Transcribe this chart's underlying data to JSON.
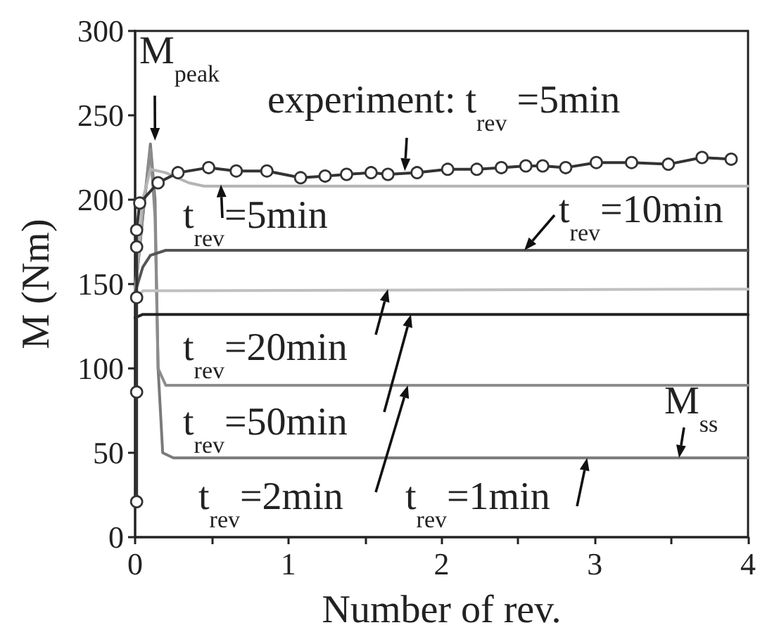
{
  "chart_data": {
    "type": "line",
    "xlabel": "Number of rev.",
    "ylabel": "M (Nm)",
    "xlim": [
      0,
      4
    ],
    "xticks": [
      0,
      {
        "value": 0.5,
        "label": null
      },
      1,
      {
        "value": 1.5,
        "label": null
      },
      2,
      {
        "value": 2.5,
        "label": null
      },
      3,
      {
        "value": 3.5,
        "label": null
      },
      4
    ],
    "ylim": [
      0,
      300
    ],
    "yticks": [
      0,
      50,
      100,
      150,
      200,
      250,
      300
    ],
    "grid": false,
    "line_style": "solid",
    "series": [
      {
        "color": "#7a7a7a",
        "marker": "none",
        "x": [
          0,
          0.05,
          0.1,
          0.13,
          0.15,
          0.18,
          0.25,
          4
        ],
        "values": [
          145,
          190,
          233,
          200,
          100,
          50,
          47,
          47
        ]
      },
      {
        "color": "#8c8c8c",
        "marker": "none",
        "x": [
          0,
          0.05,
          0.1,
          0.13,
          0.15,
          0.2,
          4
        ],
        "values": [
          145,
          190,
          230,
          190,
          100,
          90,
          90
        ]
      },
      {
        "color": "#b4b4b4",
        "marker": "none",
        "x": [
          0,
          0.05,
          0.1,
          0.2,
          0.35,
          0.45,
          4
        ],
        "values": [
          145,
          200,
          218,
          216,
          210,
          208,
          208
        ]
      },
      {
        "color": "#555555",
        "marker": "none",
        "x": [
          0,
          0.05,
          0.1,
          0.2,
          4
        ],
        "values": [
          145,
          160,
          167,
          170,
          170
        ]
      },
      {
        "color": "#c0c0c0",
        "marker": "none",
        "x": [
          0,
          0.05,
          4
        ],
        "values": [
          140,
          146,
          147
        ]
      },
      {
        "color": "#222222",
        "marker": "none",
        "x": [
          0,
          0.05,
          4
        ],
        "values": [
          130,
          132,
          132
        ]
      },
      {
        "color": "#333333",
        "marker": "circle",
        "x": [
          0.01,
          0.01,
          0.01,
          0.01,
          0.01,
          0.03,
          0.15,
          0.28,
          0.48,
          0.66,
          0.86,
          1.08,
          1.24,
          1.38,
          1.54,
          1.65,
          1.84,
          2.04,
          2.23,
          2.39,
          2.55,
          2.66,
          2.81,
          3.01,
          3.24,
          3.48,
          3.7,
          3.89
        ],
        "values": [
          21,
          86,
          142,
          172,
          182,
          198,
          210,
          216,
          219,
          217,
          217,
          213,
          214,
          215,
          216,
          215,
          216,
          218,
          218,
          219,
          220,
          220,
          219,
          222,
          222,
          221,
          225,
          224
        ]
      }
    ],
    "annotations": [
      {
        "text": "M$_{peak}$",
        "x": 0.13,
        "y": 235
      },
      {
        "text": "experiment: t$_{rev}$ =5min",
        "x": 1.76,
        "y": 217
      },
      {
        "text": "t$_{rev}$=5min",
        "x": 0.56,
        "y": 209
      },
      {
        "text": "t$_{rev}$=10min",
        "x": 2.54,
        "y": 170
      },
      {
        "text": "t$_{rev}$=20min",
        "x": 1.65,
        "y": 147
      },
      {
        "text": "t$_{rev}$=50min",
        "x": 1.8,
        "y": 132
      },
      {
        "text": "t$_{rev}$=2min",
        "x": 1.78,
        "y": 90
      },
      {
        "text": "t$_{rev}$=1min",
        "x": 2.95,
        "y": 47
      },
      {
        "text": "M$_{ss}$",
        "x": 3.55,
        "y": 47
      }
    ]
  }
}
